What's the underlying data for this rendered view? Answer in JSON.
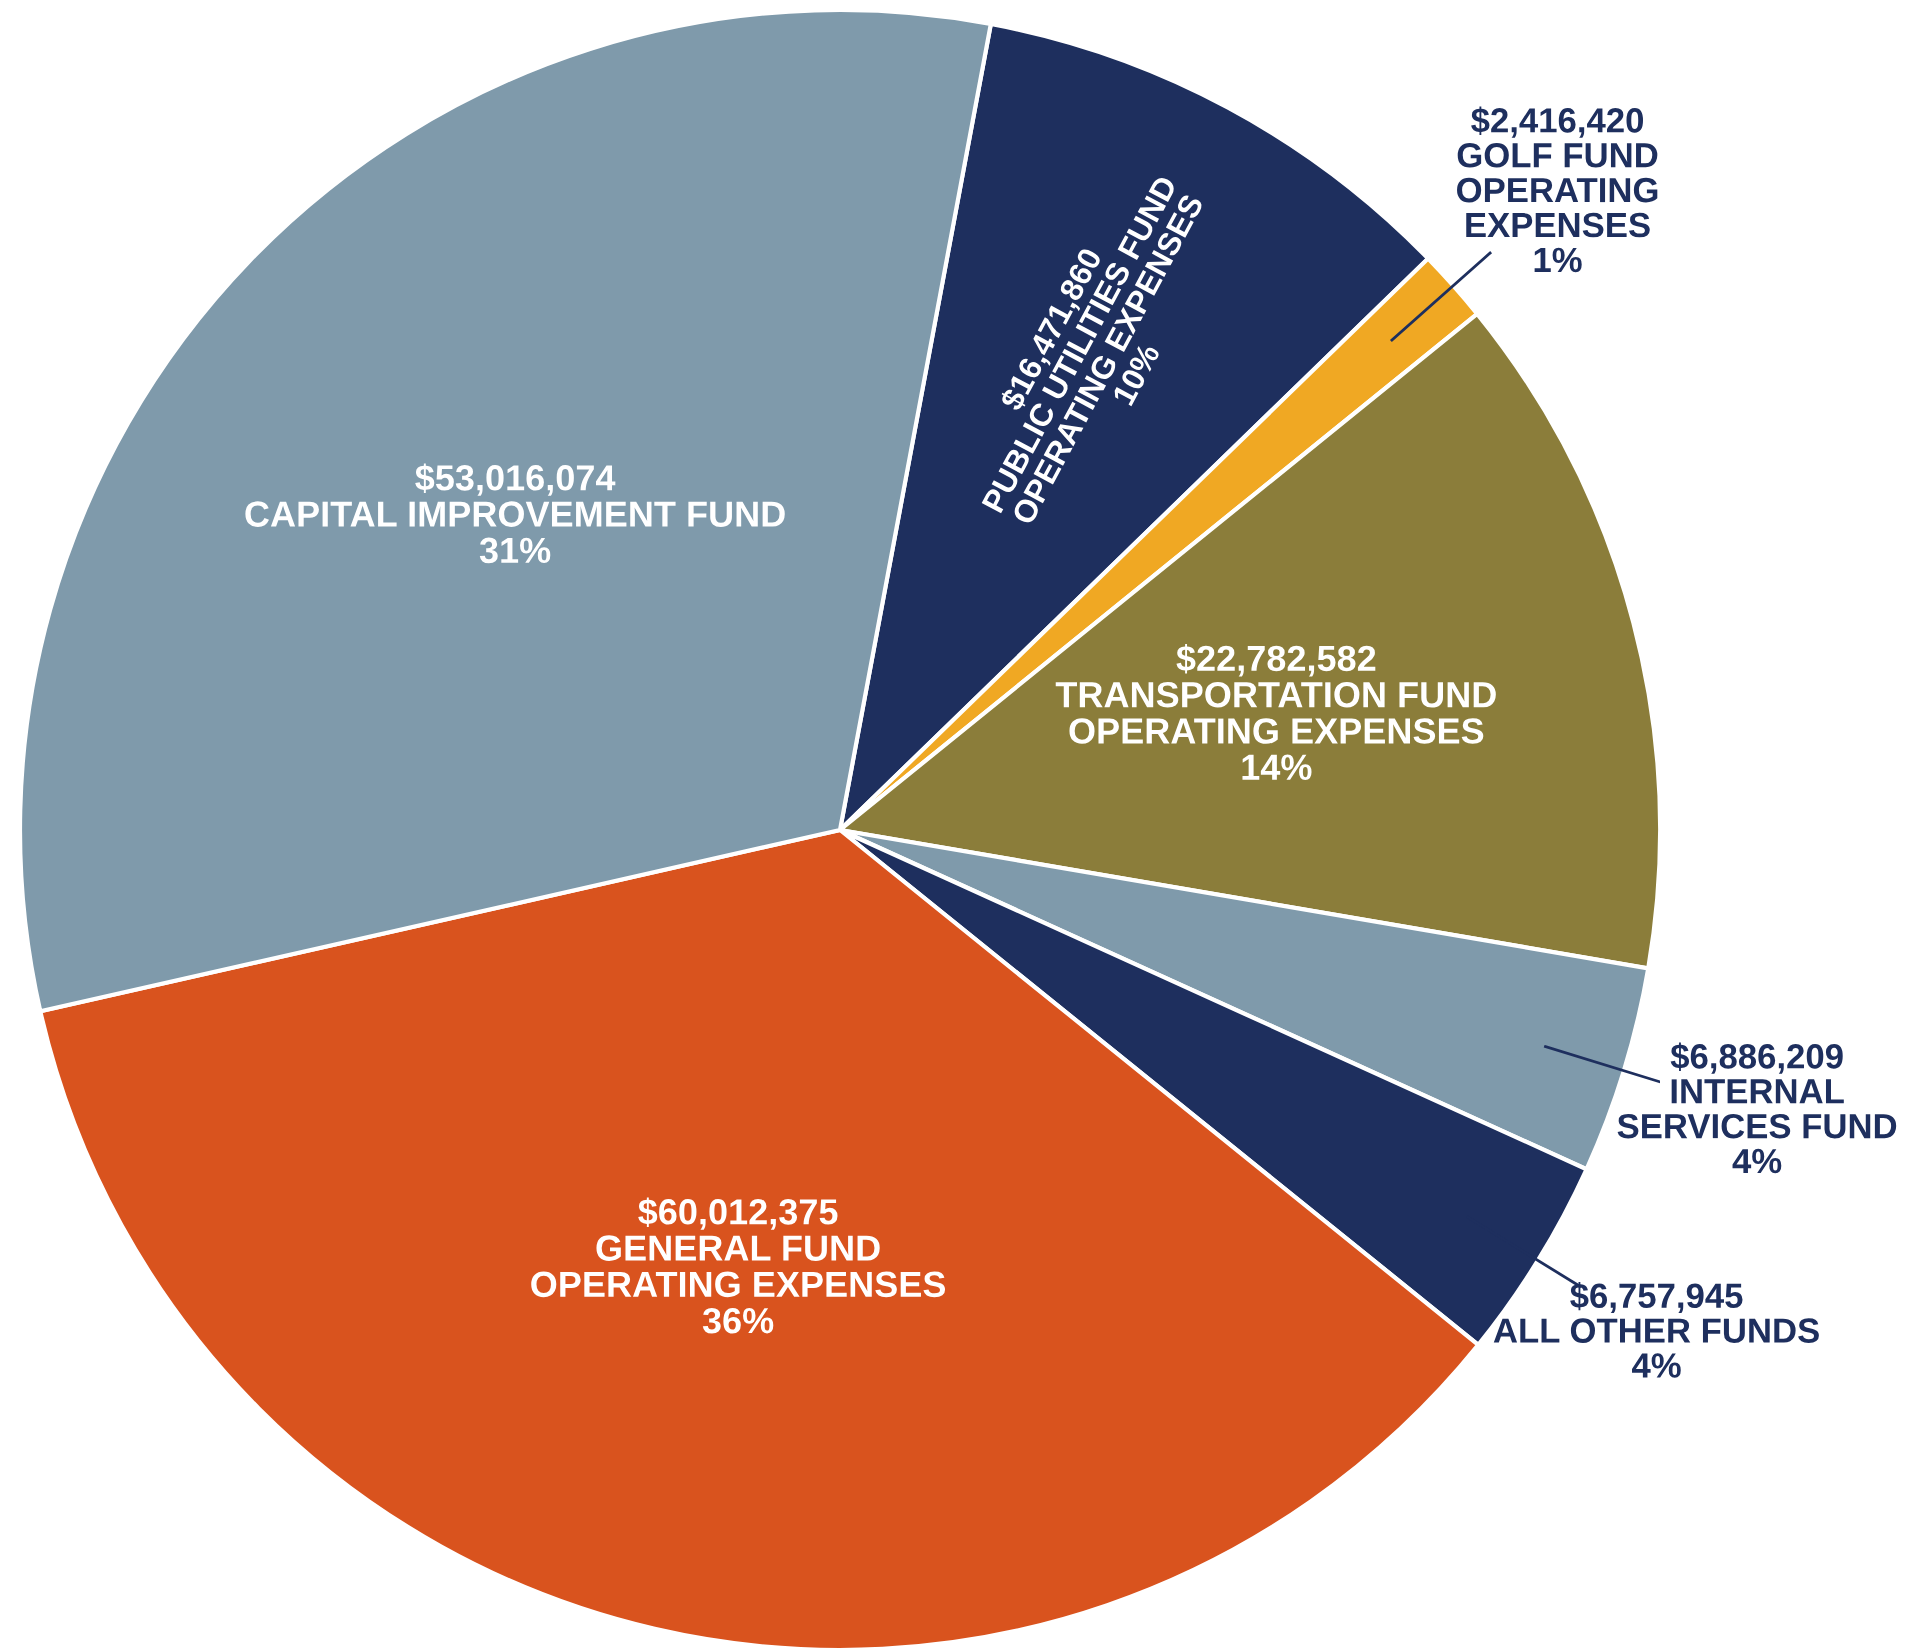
{
  "chart_data": {
    "type": "pie",
    "categories": [
      "PUBLIC UTILITIES FUND\nOPERATING EXPENSES\n10%",
      "GOLF FUND\nOPERATING\nEXPENSES\n1%",
      "TRANSPORTATION FUND\nOPERATING EXPENSES\n14%",
      "INTERNAL\nSERVICES FUND\n4%",
      "ALL OTHER FUNDS\n4%",
      "GENERAL FUND\nOPERATING EXPENSES\n36%",
      "CAPITAL IMPROVEMENT FUND\n31%"
    ],
    "values": [
      16471860,
      2416420,
      22782582,
      6886209,
      6757945,
      60012375,
      53016074
    ],
    "value_labels": [
      "$16,471,860",
      "$2,416,420",
      "$22,782,582",
      "$6,886,209",
      "$6,757,945",
      "$60,012,375",
      "$53,016,074"
    ],
    "colors": [
      "#1e2f5e",
      "#f0a823",
      "#8b7d3a",
      "#7f9aab",
      "#1e2f5e",
      "#d9531e",
      "#7f9aab"
    ]
  }
}
